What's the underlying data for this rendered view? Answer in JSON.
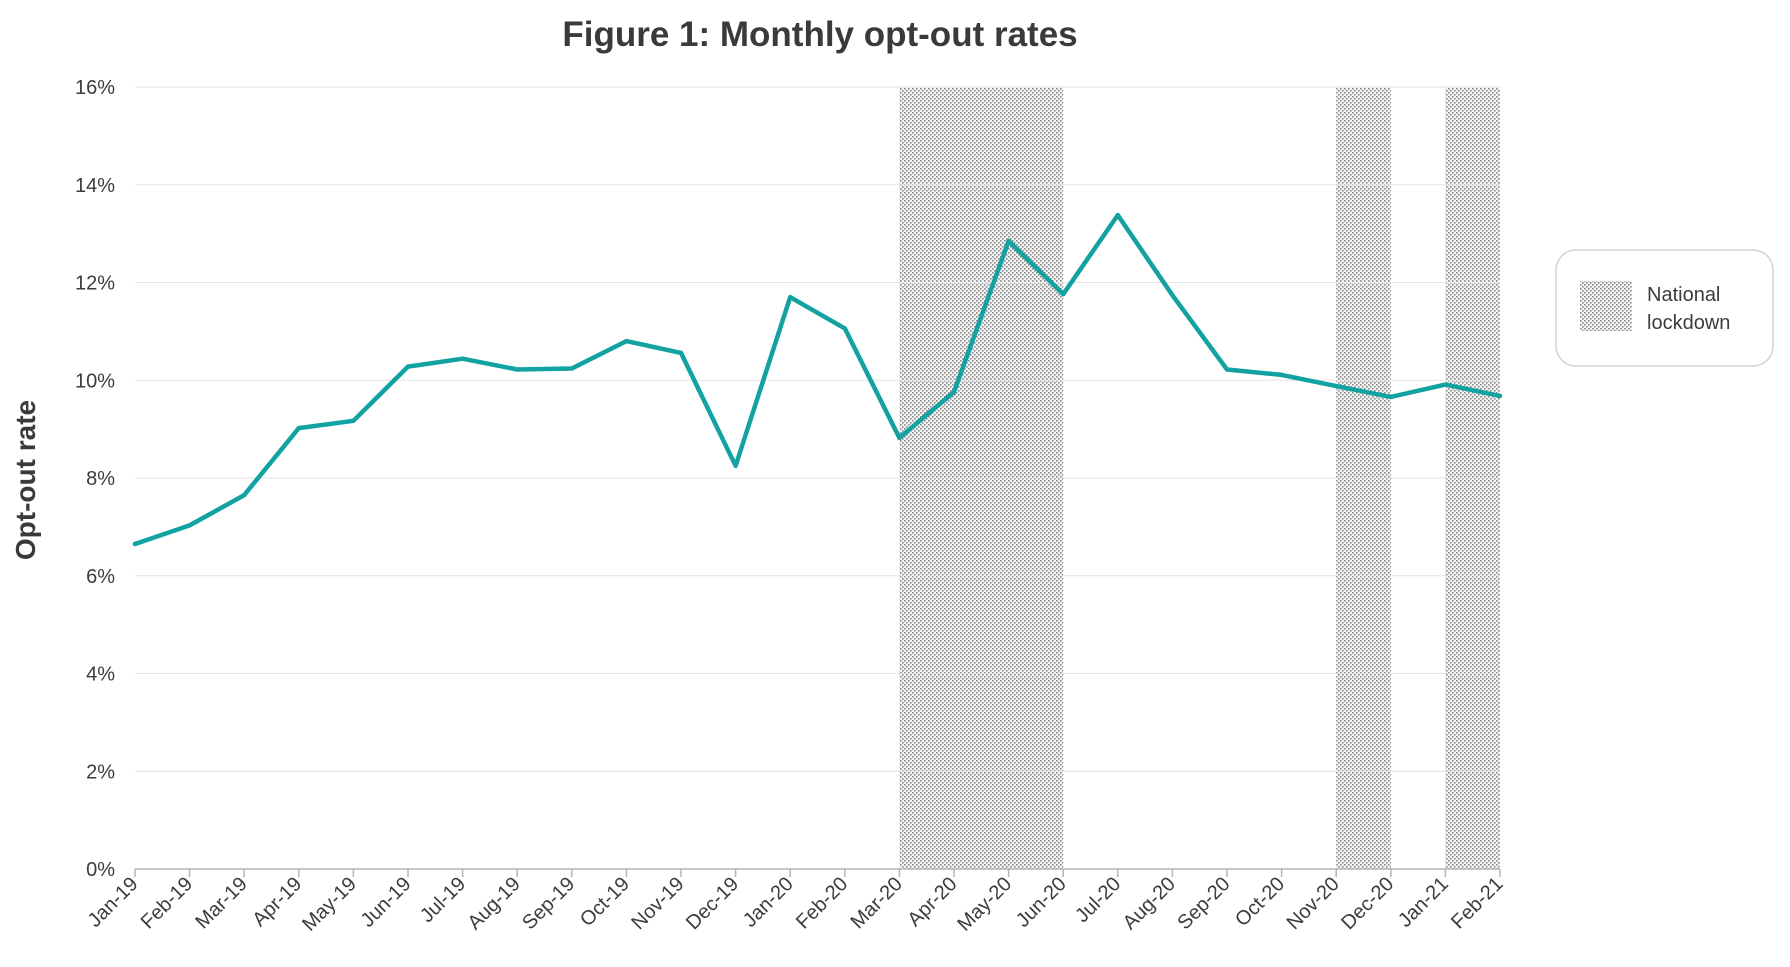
{
  "chart_data": {
    "type": "line",
    "title": "Figure 1: Monthly opt-out rates",
    "xlabel": "",
    "ylabel": "Opt-out rate",
    "categories": [
      "Jan-19",
      "Feb-19",
      "Mar-19",
      "Apr-19",
      "May-19",
      "Jun-19",
      "Jul-19",
      "Aug-19",
      "Sep-19",
      "Oct-19",
      "Nov-19",
      "Dec-19",
      "Jan-20",
      "Feb-20",
      "Mar-20",
      "Apr-20",
      "May-20",
      "Jun-20",
      "Jul-20",
      "Aug-20",
      "Sep-20",
      "Oct-20",
      "Nov-20",
      "Dec-20",
      "Jan-21",
      "Feb-21"
    ],
    "series": [
      {
        "values": [
          6.65,
          7.03,
          7.65,
          9.02,
          9.17,
          10.28,
          10.44,
          10.22,
          10.24,
          10.8,
          10.56,
          8.25,
          11.7,
          11.06,
          8.82,
          9.76,
          12.85,
          11.76,
          13.38,
          11.74,
          10.22,
          10.11,
          9.88,
          9.66,
          9.91,
          9.68
        ],
        "color": "#12a2a2"
      }
    ],
    "ylim": [
      0,
      16
    ],
    "yticks": [
      0,
      2,
      4,
      6,
      8,
      10,
      12,
      14,
      16
    ],
    "ytick_labels": [
      "0%",
      "2%",
      "4%",
      "6%",
      "8%",
      "10%",
      "12%",
      "14%",
      "16%"
    ],
    "grid": "horizontal",
    "shaded_periods": [
      {
        "start": "Mar-20",
        "end": "Jun-20"
      },
      {
        "start": "Nov-20",
        "end": "Dec-20"
      },
      {
        "start": "Jan-21",
        "end": "Feb-21"
      }
    ],
    "legend": {
      "position": "right",
      "entries": [
        {
          "label_line1": "National",
          "label_line2": "lockdown",
          "pattern": "dotted-gray"
        }
      ]
    }
  }
}
